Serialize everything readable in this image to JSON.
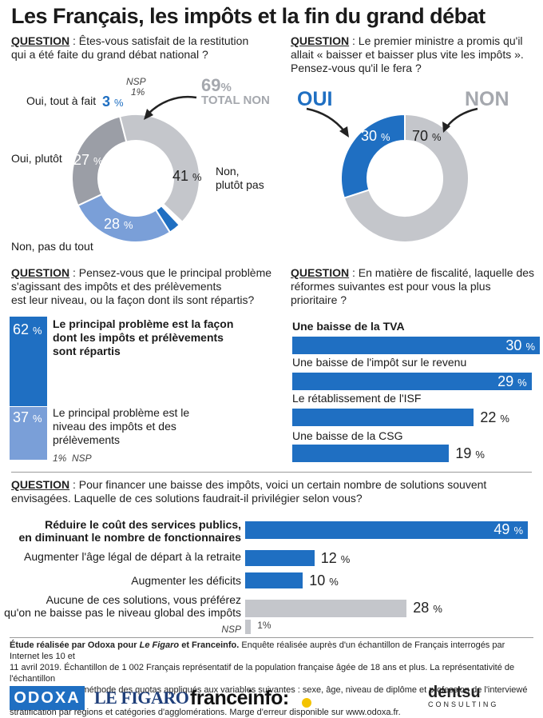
{
  "title": "Les Français, les impôts et la fin du grand débat",
  "q_word": "QUESTION",
  "chart_data": [
    {
      "type": "pie",
      "question": "Êtes-vous satisfait de la restitution qui a été faite du grand débat national ?",
      "categories": [
        "Oui, tout à fait",
        "Oui, plutôt",
        "Non, pas du tout",
        "Non, plutôt pas",
        "NSP"
      ],
      "values": [
        3,
        27,
        28,
        41,
        1
      ],
      "colors": [
        "#1f6fc2",
        "#7a9fd8",
        "#9b9ea6",
        "#c4c6cb",
        "#ffffff"
      ],
      "annotation": {
        "value": "69",
        "unit": "%",
        "label": "TOTAL NON"
      }
    },
    {
      "type": "pie",
      "question": "Le premier ministre a promis qu'il allait « baisser et baisser plus vite les impôts ». Pensez-vous qu'il le fera ?",
      "categories": [
        "OUI",
        "NON"
      ],
      "values": [
        30,
        70
      ],
      "colors": [
        "#1f6fc2",
        "#c4c6cb"
      ]
    },
    {
      "type": "bar",
      "question": "Pensez-vous que le principal problème s'agissant des impôts et des prélèvements est leur niveau, ou la façon dont ils sont répartis?",
      "categories": [
        "Le principal problème est la façon dont les impôts et prélèvements sont répartis",
        "Le principal problème est le niveau des impôts et des prélèvements",
        "NSP"
      ],
      "values": [
        62,
        37,
        1
      ],
      "colors": [
        "#1f6fc2",
        "#7a9fd8"
      ]
    },
    {
      "type": "bar",
      "question": "En matière de fiscalité, laquelle des réformes suivantes est pour vous la plus prioritaire ?",
      "categories": [
        "Une baisse de la TVA",
        "Une baisse de l'impôt sur le revenu",
        "Le rétablissement de l'ISF",
        "Une baisse de la CSG"
      ],
      "values": [
        30,
        29,
        22,
        19
      ]
    },
    {
      "type": "bar",
      "question": "Pour financer une baisse des impôts, voici un certain nombre de solutions souvent envisagées. Laquelle de ces solutions faudrait-il privilégier selon vous?",
      "categories": [
        "Réduire le coût des services publics, en diminuant le nombre de fonctionnaires",
        "Augmenter l'âge légal de départ à la retraite",
        "Augmenter les déficits",
        "Aucune de ces solutions, vous préférez qu'on ne baisse pas le niveau global des impôts",
        "NSP"
      ],
      "values": [
        49,
        12,
        10,
        28,
        1
      ],
      "colors": [
        "#1f6fc2",
        "#1f6fc2",
        "#1f6fc2",
        "#c4c6cb",
        "#c4c6cb"
      ]
    }
  ],
  "q1": {
    "line1": "Êtes-vous satisfait de la restitution",
    "line2": "qui a été faite du grand débat national ?",
    "l_tout": "Oui, tout à fait",
    "l_plutot": "Oui, plutôt",
    "l_pasdutout": "Non, pas du tout",
    "l_nonplutot1": "Non,",
    "l_nonplutot2": "plutôt pas",
    "l_nsp": "NSP",
    "v_tout": "3",
    "v_plutot": "27",
    "v_pasdutout": "28",
    "v_nonplutot": "41",
    "v_nsp": "1%",
    "total_value": "69",
    "total_label": "TOTAL NON"
  },
  "q2": {
    "line1": "Le premier ministre a promis qu'il",
    "line2": "allait « baisser et baisser plus vite les impôts ».",
    "line3": "Pensez-vous qu'il le fera ?",
    "oui": "OUI",
    "non": "NON",
    "v_oui": "30",
    "v_non": "70"
  },
  "q3": {
    "line1": "Pensez-vous que le principal problème",
    "line2": "s'agissant des impôts et des prélèvements",
    "line3": "est leur niveau, ou la façon dont ils sont répartis?",
    "a1_1": "Le principal problème est la façon",
    "a1_2": "dont les impôts et prélèvements",
    "a1_3": "sont répartis",
    "a2_1": "Le principal problème est le",
    "a2_2": "niveau des impôts et des",
    "a2_3": "prélèvements",
    "v1": "62",
    "v2": "37",
    "v_nsp": "1%",
    "l_nsp": "NSP"
  },
  "q4": {
    "line1": "En matière de fiscalité, laquelle des",
    "line2": "réformes suivantes est pour vous la plus",
    "line3": "prioritaire ?",
    "items": [
      "Une baisse de la TVA",
      "Une baisse de l'impôt sur le revenu",
      "Le rétablissement de l'ISF",
      "Une baisse de la CSG"
    ],
    "vals": [
      "30",
      "29",
      "22",
      "19"
    ]
  },
  "q5": {
    "line1": "Pour financer une baisse des impôts, voici un certain nombre de solutions souvent",
    "line2": "envisagées. Laquelle de ces solutions faudrait-il privilégier selon vous?",
    "i1_1": "Réduire le coût des services publics,",
    "i1_2": "en diminuant le nombre de fonctionnaires",
    "i2": "Augmenter l'âge légal de départ à la retraite",
    "i3": "Augmenter les déficits",
    "i4_1": "Aucune de ces solutions, vous préférez",
    "i4_2": "qu'on ne baisse pas le niveau global des impôts",
    "l_nsp": "NSP",
    "vals": [
      "49",
      "12",
      "10",
      "28",
      "1"
    ]
  },
  "pct_sign": "%",
  "footer": {
    "bold": "Étude réalisée par Odoxa pour",
    "figaro": "Le Figaro",
    "et": "et",
    "franceinfo": "Franceinfo.",
    "line1": "Enquête réalisée auprès d'un échantillon de Français interrogés par Internet les 10 et",
    "line2": "11 avril 2019. Échantillon de 1 002 Français représentatif de la population française âgée de 18 ans et plus. La représentativité de l'échantillon",
    "line3": "est assurée par la méthode des quotas appliqués aux variables suivantes : sexe, âge, niveau de diplôme et profession de l'interviewé après",
    "line4": "stratification par régions et catégories d'agglomérations. Marge d'erreur disponible sur www.odoxa.fr."
  },
  "logos": {
    "odoxa": "ODOXA",
    "figaro": "LE FIGARO",
    "franceinfo": "franceinfo:",
    "dentsu": "dentsu",
    "consulting": "CONSULTING"
  }
}
